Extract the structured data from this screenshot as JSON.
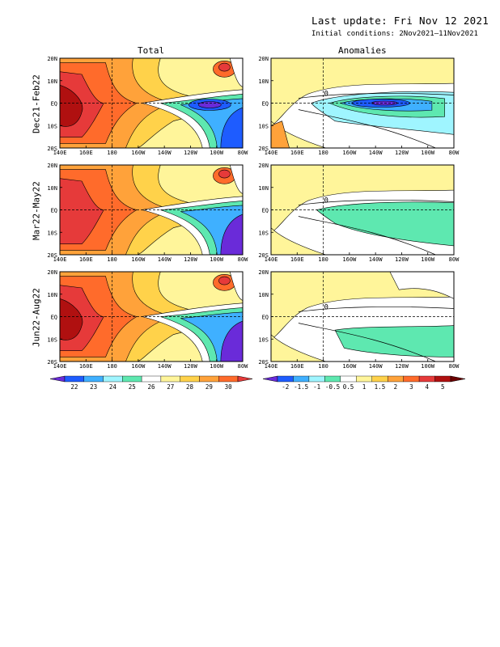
{
  "header": {
    "last_update": "Last update: Fri Nov 12 2021",
    "initial_conditions": "Initial conditions: 2Nov2021–11Nov2021"
  },
  "columns": [
    "Total",
    "Anomalies"
  ],
  "rows": [
    "Dec21-Feb22",
    "Mar22-May22",
    "Jun22-Aug22"
  ],
  "lat_labels": [
    "20N",
    "10N",
    "EQ",
    "10S",
    "20S"
  ],
  "lon_labels": [
    "140E",
    "160E",
    "180",
    "160W",
    "140W",
    "120W",
    "100W",
    "80W"
  ],
  "total_colorbar": {
    "labels": [
      "22",
      "23",
      "24",
      "25",
      "26",
      "27",
      "28",
      "29",
      "30"
    ],
    "colors": [
      "#6a2bd9",
      "#1e5cff",
      "#3fb0ff",
      "#9ff5ff",
      "#5ee8b0",
      "#ffffff",
      "#fff59a",
      "#ffd24a",
      "#ffa23a",
      "#ff6b2b",
      "#e63a3a"
    ]
  },
  "anom_colorbar": {
    "labels": [
      "-2",
      "-1.5",
      "-1",
      "-0.5",
      "0.5",
      "1",
      "1.5",
      "2",
      "3",
      "4",
      "5"
    ],
    "colors": [
      "#6a2bd9",
      "#1e5cff",
      "#3fb0ff",
      "#9ff5ff",
      "#5ee8b0",
      "#ffffff",
      "#fff59a",
      "#ffd24a",
      "#ffa23a",
      "#ff6b2b",
      "#e63a3a",
      "#b01010",
      "#6b0000"
    ]
  },
  "contour_labels": {
    "zero": "0"
  }
}
